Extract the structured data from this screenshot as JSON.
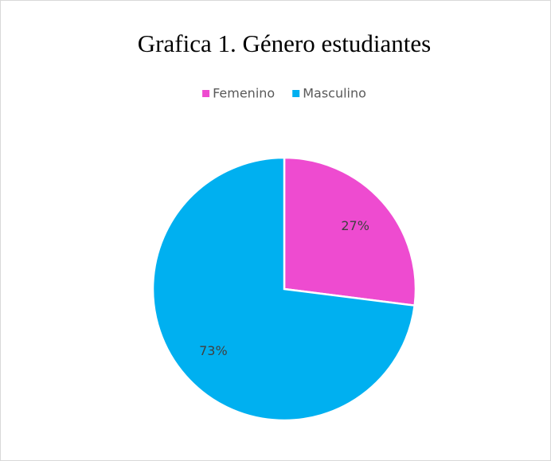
{
  "chart_data": {
    "type": "pie",
    "title": "Grafica 1. Género estudiantes",
    "categories": [
      "Femenino",
      "Masculino"
    ],
    "values": [
      27,
      73
    ],
    "value_labels": [
      "27%",
      "73%"
    ],
    "colors": [
      "#ee4bd0",
      "#00b0f0"
    ],
    "legend": "top"
  }
}
